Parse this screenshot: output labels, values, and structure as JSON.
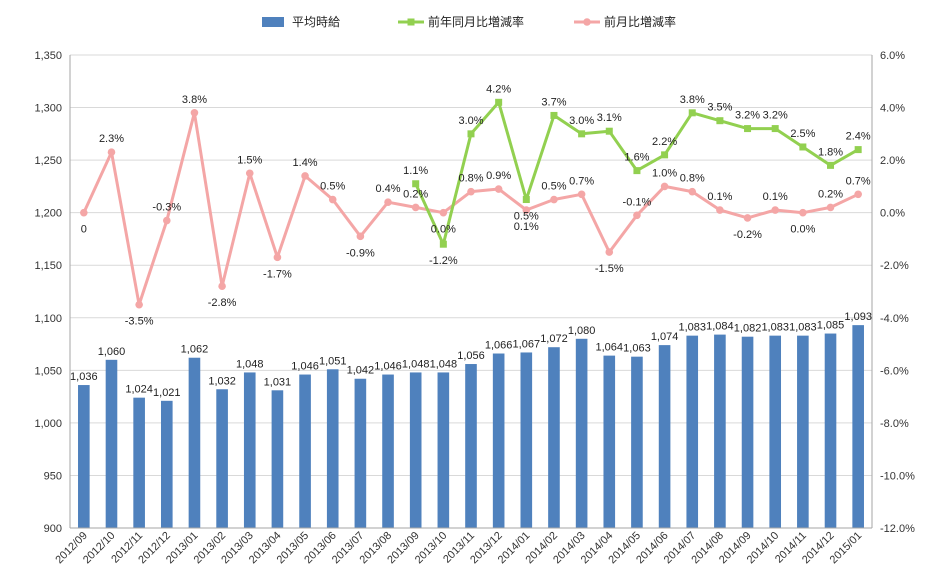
{
  "chart_data": {
    "type": "bar+line",
    "categories": [
      "2012/09",
      "2012/10",
      "2012/11",
      "2012/12",
      "2013/01",
      "2013/02",
      "2013/03",
      "2013/04",
      "2013/05",
      "2013/06",
      "2013/07",
      "2013/08",
      "2013/09",
      "2013/10",
      "2013/11",
      "2013/12",
      "2014/01",
      "2014/02",
      "2014/03",
      "2014/04",
      "2014/05",
      "2014/06",
      "2014/07",
      "2014/08",
      "2014/09",
      "2014/10",
      "2014/11",
      "2014/12",
      "2015/01"
    ],
    "left_axis": {
      "min": 900,
      "max": 1350,
      "step": 50,
      "tick_labels": [
        "900",
        "950",
        "1,000",
        "1,050",
        "1,100",
        "1,150",
        "1,200",
        "1,250",
        "1,300",
        "1,350"
      ]
    },
    "right_axis": {
      "min": -12,
      "max": 6,
      "step": 2,
      "tick_labels": [
        "-12.0%",
        "-10.0%",
        "-8.0%",
        "-6.0%",
        "-4.0%",
        "-2.0%",
        "0.0%",
        "2.0%",
        "4.0%",
        "6.0%"
      ]
    },
    "legend_position": "top",
    "grid": true,
    "series": [
      {
        "name": "平均時給",
        "type": "bar",
        "axis": "left",
        "color": "#4f81bd",
        "values": [
          1036,
          1060,
          1024,
          1021,
          1062,
          1032,
          1048,
          1031,
          1046,
          1051,
          1042,
          1046,
          1048,
          1048,
          1056,
          1066,
          1067,
          1072,
          1080,
          1064,
          1063,
          1074,
          1083,
          1084,
          1082,
          1083,
          1083,
          1085,
          1093
        ],
        "labels": [
          "1,036",
          "1,060",
          "1,024",
          "1,021",
          "1,062",
          "1,032",
          "1,048",
          "1,031",
          "1,046",
          "1,051",
          "1,042",
          "1,046",
          "1,048",
          "1,048",
          "1,056",
          "1,066",
          "1,067",
          "1,072",
          "1,080",
          "1,064",
          "1,063",
          "1,074",
          "1,083",
          "1,084",
          "1,082",
          "1,083",
          "1,083",
          "1,085",
          "1,093"
        ]
      },
      {
        "name": "前年同月比増減率",
        "type": "line",
        "axis": "right",
        "color": "#92d050",
        "marker": "square",
        "values": [
          null,
          null,
          null,
          null,
          null,
          null,
          null,
          null,
          null,
          null,
          null,
          null,
          1.1,
          -1.2,
          3.0,
          4.2,
          0.5,
          3.7,
          3.0,
          3.1,
          1.6,
          2.2,
          3.8,
          3.5,
          3.2,
          3.2,
          2.5,
          1.8,
          2.4
        ],
        "labels": [
          "",
          "",
          "",
          "",
          "",
          "",
          "",
          "",
          "",
          "",
          "",
          "",
          "1.1%",
          "-1.2%",
          "3.0%",
          "4.2%",
          "0.5%",
          "3.7%",
          "3.0%",
          "3.1%",
          "1.6%",
          "2.2%",
          "3.8%",
          "3.5%",
          "3.2%",
          "3.2%",
          "2.5%",
          "1.8%",
          "2.4%"
        ]
      },
      {
        "name": "前月比増減率",
        "type": "line",
        "axis": "right",
        "color": "#f4a6a6",
        "marker": "circle",
        "values": [
          0,
          2.3,
          -3.5,
          -0.3,
          3.8,
          -2.8,
          1.5,
          -1.7,
          1.4,
          0.5,
          -0.9,
          0.4,
          0.2,
          0.0,
          0.8,
          0.9,
          0.1,
          0.5,
          0.7,
          -1.5,
          -0.1,
          1.0,
          0.8,
          0.1,
          -0.2,
          0.1,
          0.0,
          0.2,
          0.7
        ],
        "labels": [
          "0",
          "2.3%",
          "-3.5%",
          "-0.3%",
          "3.8%",
          "-2.8%",
          "1.5%",
          "-1.7%",
          "1.4%",
          "0.5%",
          "-0.9%",
          "0.4%",
          "0.2%",
          "0.0%",
          "0.8%",
          "0.9%",
          "0.1%",
          "0.5%",
          "0.7%",
          "-1.5%",
          "-0.1%",
          "1.0%",
          "0.8%",
          "0.1%",
          "-0.2%",
          "0.1%",
          "0.0%",
          "0.2%",
          "0.7%"
        ]
      }
    ]
  }
}
